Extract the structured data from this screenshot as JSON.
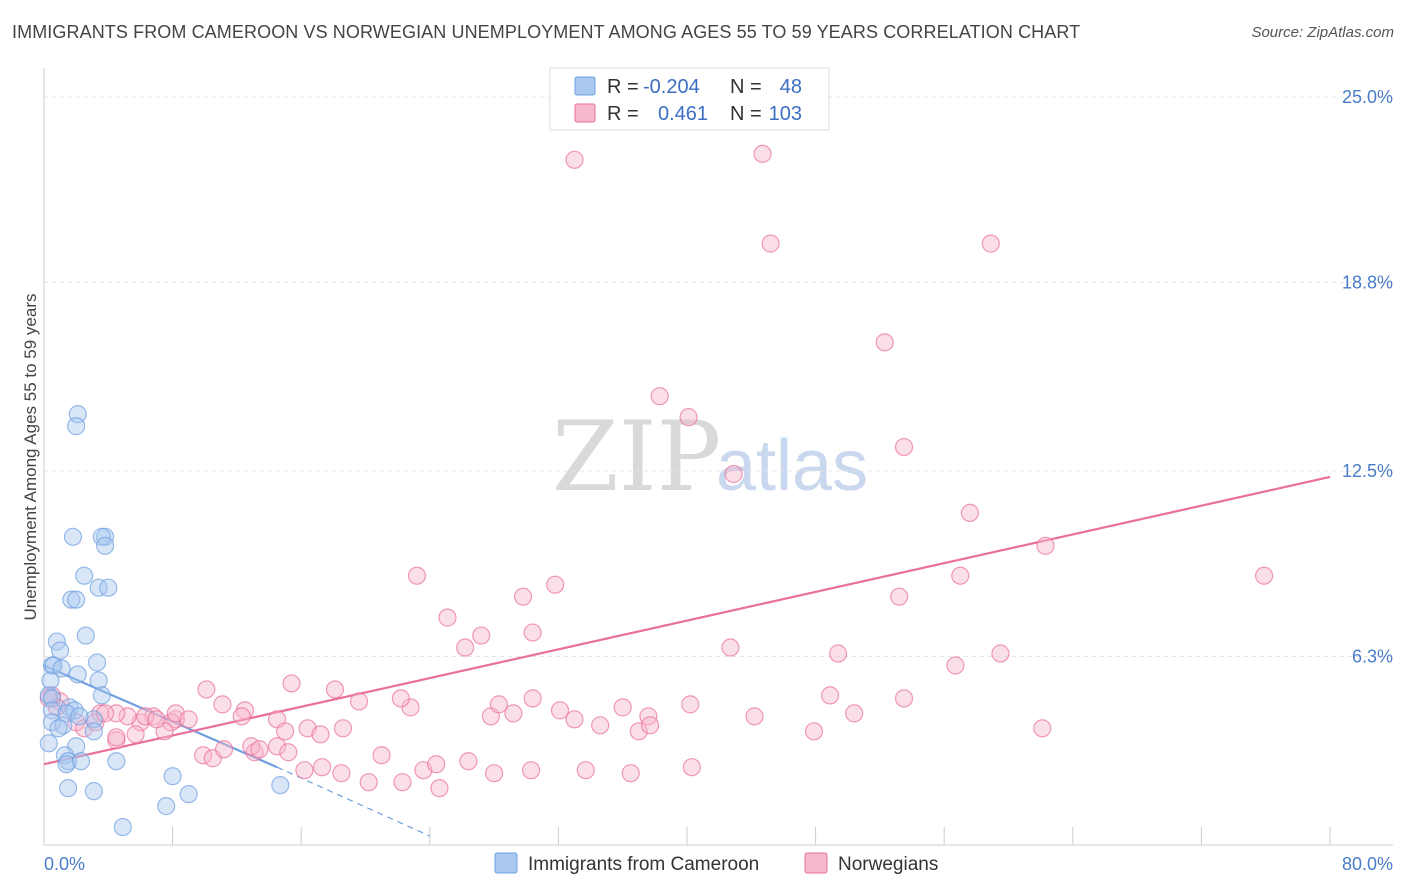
{
  "title": "IMMIGRANTS FROM CAMEROON VS NORWEGIAN UNEMPLOYMENT AMONG AGES 55 TO 59 YEARS CORRELATION CHART",
  "source": "Source: ZipAtlas.com",
  "watermark": {
    "zip": "ZIP",
    "atlas": "atlas"
  },
  "legend_top": [
    {
      "r_label": "R =",
      "r_value": "-0.204",
      "n_label": "N =",
      "n_value": "48",
      "color": "#a9c8f0"
    },
    {
      "r_label": "R =",
      "r_value": "0.461",
      "n_label": "N =",
      "n_value": "103",
      "color": "#f6b8cc"
    }
  ],
  "legend_bottom": [
    {
      "label": "Immigrants from Cameroon",
      "color": "#a9c8f0"
    },
    {
      "label": "Norwegians",
      "color": "#f6b8cc"
    }
  ],
  "chart_data": {
    "type": "scatter",
    "title": "IMMIGRANTS FROM CAMEROON VS NORWEGIAN UNEMPLOYMENT AMONG AGES 55 TO 59 YEARS CORRELATION CHART",
    "xlabel": "",
    "ylabel": "Unemployment Among Ages 55 to 59 years",
    "xlim": [
      0,
      80
    ],
    "ylim": [
      0,
      25
    ],
    "x_tick_labels": [
      "0.0%",
      "80.0%"
    ],
    "y_ticks": [
      6.3,
      12.5,
      18.8,
      25.0
    ],
    "y_tick_labels": [
      "6.3%",
      "12.5%",
      "18.8%",
      "25.0%"
    ],
    "series": [
      {
        "name": "Immigrants from Cameroon",
        "color": "#6f9fe0",
        "fill": "#a9c8f0",
        "trend": {
          "x0": 0,
          "y0": 6.0,
          "x1": 14.5,
          "y1": 2.6,
          "dash_to_x": 24,
          "dash_to_y": 0.3
        },
        "x": [
          2.1,
          2.0,
          3.8,
          3.6,
          1.8,
          3.8,
          2.5,
          3.4,
          4.0,
          1.7,
          2.0,
          2.6,
          0.8,
          1.0,
          3.3,
          0.5,
          0.6,
          1.1,
          2.1,
          3.4,
          0.4,
          0.3,
          3.6,
          0.5,
          1.6,
          0.5,
          1.9,
          1.4,
          0.5,
          3.1,
          2.2,
          1.2,
          0.9,
          3.1,
          0.3,
          2.0,
          1.3,
          1.5,
          1.4,
          4.5,
          2.3,
          8.0,
          1.5,
          3.1,
          9.0,
          7.6,
          14.7,
          4.9
        ],
        "y": [
          14.4,
          14.0,
          10.3,
          10.3,
          10.3,
          10.0,
          9.0,
          8.6,
          8.6,
          8.2,
          8.2,
          7.0,
          6.8,
          6.5,
          6.1,
          6.0,
          6.0,
          5.9,
          5.7,
          5.5,
          5.5,
          5.0,
          5.0,
          4.9,
          4.6,
          4.5,
          4.5,
          4.4,
          4.1,
          4.2,
          4.3,
          4.0,
          3.9,
          3.8,
          3.4,
          3.3,
          3.0,
          2.8,
          2.7,
          2.8,
          2.8,
          2.3,
          1.9,
          1.8,
          1.7,
          1.3,
          2.0,
          0.6
        ]
      },
      {
        "name": "Norwegians",
        "color": "#e96f9c",
        "fill": "#f6b8cc",
        "trend": {
          "x0": 0,
          "y0": 2.7,
          "x1": 80,
          "y1": 12.3
        },
        "x": [
          33.0,
          44.7,
          52.3,
          58.9,
          45.2,
          38.3,
          40.1,
          53.5,
          42.9,
          57.6,
          62.3,
          75.9,
          23.2,
          31.8,
          29.8,
          25.1,
          30.4,
          27.2,
          26.2,
          42.7,
          49.4,
          56.7,
          57.0,
          53.2,
          15.4,
          18.1,
          19.6,
          22.8,
          22.2,
          27.8,
          29.2,
          32.1,
          37.6,
          40.2,
          28.3,
          30.4,
          33.0,
          36.0,
          34.6,
          37.0,
          37.7,
          44.2,
          47.9,
          48.9,
          50.4,
          53.5,
          59.5,
          62.1,
          10.1,
          11.1,
          12.5,
          14.5,
          15.0,
          16.4,
          17.2,
          18.6,
          21.0,
          23.6,
          24.4,
          26.4,
          28.0,
          13.1,
          12.9,
          14.5,
          13.4,
          9.9,
          10.5,
          11.2,
          8.2,
          7.9,
          7.5,
          6.8,
          6.0,
          5.2,
          4.5,
          4.5,
          3.5,
          1.0,
          0.8,
          0.5,
          0.3,
          2.0,
          2.5,
          3.2,
          3.8,
          4.5,
          5.7,
          6.3,
          7.0,
          8.2,
          9.0,
          12.3,
          15.2,
          16.2,
          17.3,
          18.5,
          20.2,
          22.3,
          24.6,
          30.3,
          33.7,
          36.5,
          40.3
        ],
        "y": [
          22.9,
          23.1,
          16.8,
          20.1,
          20.1,
          15.0,
          14.3,
          13.3,
          12.4,
          11.1,
          10.0,
          9.0,
          9.0,
          8.7,
          8.3,
          7.6,
          7.1,
          7.0,
          6.6,
          6.6,
          6.4,
          6.0,
          9.0,
          8.3,
          5.4,
          5.2,
          4.8,
          4.6,
          4.9,
          4.3,
          4.4,
          4.5,
          4.3,
          4.7,
          4.7,
          4.9,
          4.2,
          4.6,
          4.0,
          3.8,
          4.0,
          4.3,
          3.8,
          5.0,
          4.4,
          4.9,
          6.4,
          3.9,
          5.2,
          4.7,
          4.5,
          4.2,
          3.8,
          3.9,
          3.7,
          3.9,
          3.0,
          2.5,
          2.7,
          2.8,
          2.4,
          3.1,
          3.3,
          3.3,
          3.2,
          3.0,
          2.9,
          3.2,
          4.2,
          4.1,
          3.8,
          4.3,
          4.1,
          4.3,
          4.4,
          3.5,
          4.4,
          4.8,
          4.6,
          5.0,
          4.9,
          4.1,
          3.9,
          4.1,
          4.4,
          3.6,
          3.7,
          4.3,
          4.2,
          4.4,
          4.2,
          4.3,
          3.1,
          2.5,
          2.6,
          2.4,
          2.1,
          2.1,
          1.9,
          2.5,
          2.5,
          2.4,
          2.6
        ]
      }
    ]
  }
}
